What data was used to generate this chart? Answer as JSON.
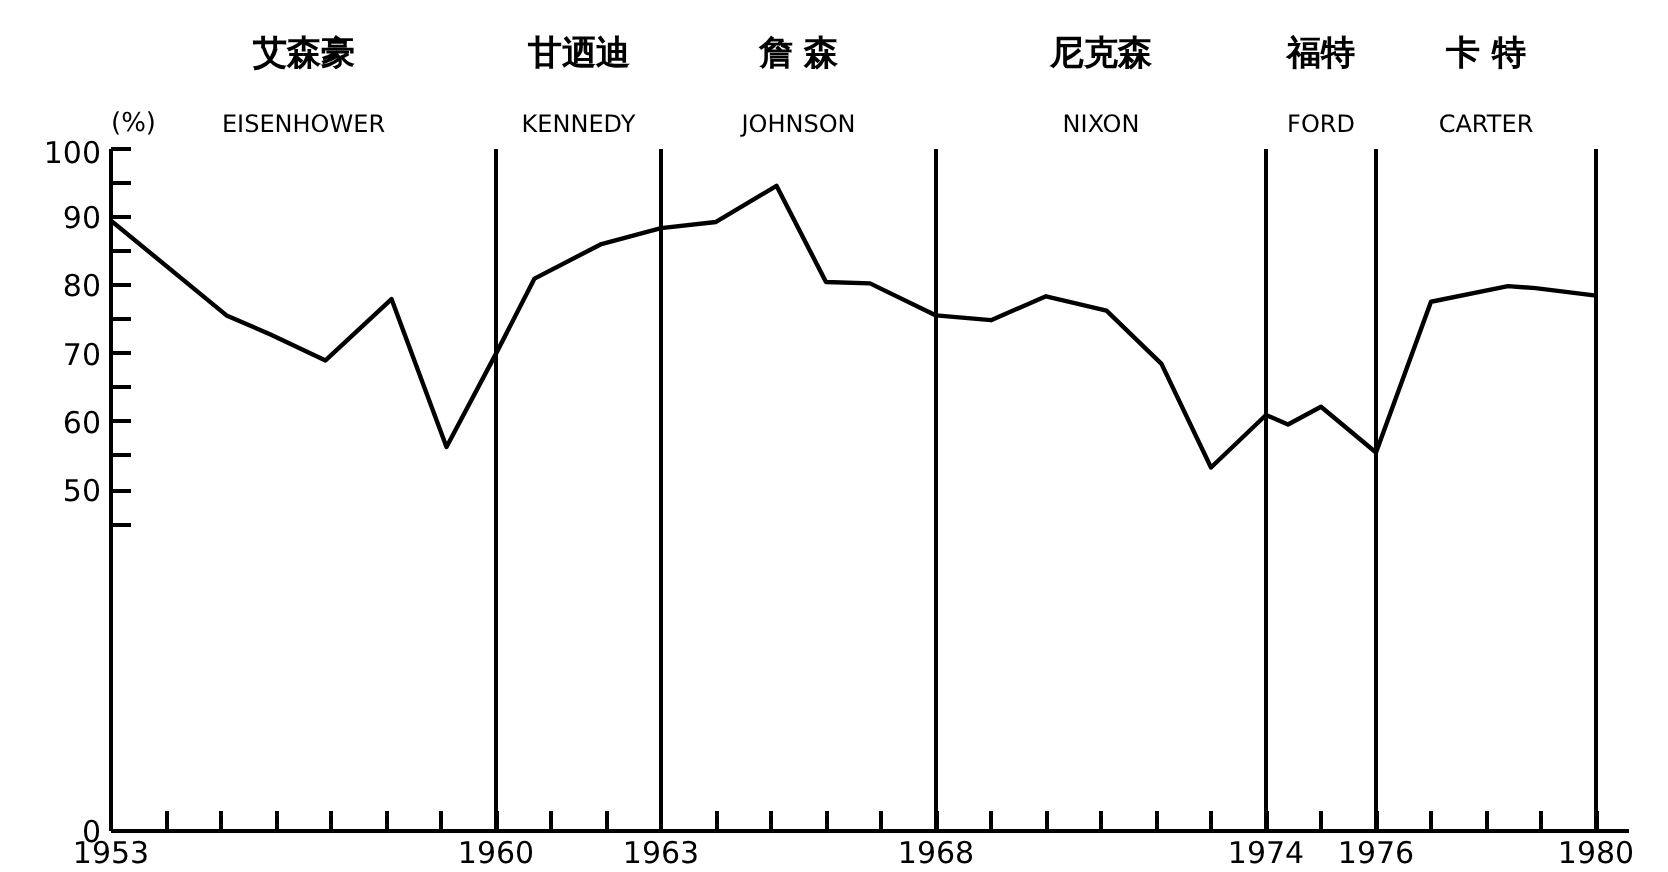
{
  "chart_data": {
    "type": "line",
    "ylabel": "(%)",
    "x": [
      1953.0,
      1955.1,
      1955.9,
      1956.9,
      1958.1,
      1959.1,
      1960.0,
      1960.7,
      1961.9,
      1963.0,
      1964.0,
      1965.1,
      1966.0,
      1966.8,
      1968.0,
      1969.0,
      1970.0,
      1971.1,
      1972.1,
      1973.0,
      1974.0,
      1974.4,
      1975.0,
      1976.0,
      1977.0,
      1978.4,
      1978.9,
      1980.0
    ],
    "series": [
      {
        "color": "#000000",
        "values": [
          89.5,
          75.6,
          72.8,
          69,
          78,
          56.3,
          70,
          81,
          86,
          88.4,
          89.3,
          94.6,
          80.5,
          80.3,
          75.6,
          74.9,
          78.4,
          76.3,
          68.5,
          53.3,
          61,
          59.6,
          62.2,
          55.5,
          77.6,
          79.9,
          79.6,
          78.5
        ]
      }
    ],
    "xlim": [
      1953,
      1980.6
    ],
    "ylim": [
      0,
      100
    ],
    "xticks": [
      1953,
      {
        "value": 1954,
        "label": null
      },
      {
        "value": 1955,
        "label": null
      },
      {
        "value": 1956,
        "label": null
      },
      {
        "value": 1957,
        "label": null
      },
      {
        "value": 1958,
        "label": null
      },
      {
        "value": 1959,
        "label": null
      },
      1960,
      {
        "value": 1961,
        "label": null
      },
      {
        "value": 1962,
        "label": null
      },
      1963,
      {
        "value": 1964,
        "label": null
      },
      {
        "value": 1965,
        "label": null
      },
      {
        "value": 1966,
        "label": null
      },
      {
        "value": 1967,
        "label": null
      },
      1968,
      {
        "value": 1969,
        "label": null
      },
      {
        "value": 1970,
        "label": null
      },
      {
        "value": 1971,
        "label": null
      },
      {
        "value": 1972,
        "label": null
      },
      {
        "value": 1973,
        "label": null
      },
      1974,
      {
        "value": 1975,
        "label": null
      },
      1976,
      {
        "value": 1977,
        "label": null
      },
      {
        "value": 1978,
        "label": null
      },
      {
        "value": 1979,
        "label": null
      },
      1980
    ],
    "yticks": [
      0,
      {
        "value": 45,
        "label": null
      },
      50,
      {
        "value": 55,
        "label": null
      },
      60,
      {
        "value": 65,
        "label": null
      },
      70,
      {
        "value": 75,
        "label": null
      },
      80,
      {
        "value": 85,
        "label": null
      },
      90,
      {
        "value": 95,
        "label": null
      },
      100
    ],
    "ref_lines": [
      {
        "axis": "x",
        "value": 1960
      },
      {
        "axis": "x",
        "value": 1963
      },
      {
        "axis": "x",
        "value": 1968
      },
      {
        "axis": "x",
        "value": 1974
      },
      {
        "axis": "x",
        "value": 1976
      },
      {
        "axis": "x",
        "value": 1980
      }
    ],
    "annotations": [
      "艾森豪\nEISENHOWER",
      "甘迺迪\nKENNEDY",
      "詹 森\nJOHNSON",
      "尼克森\nNIXON",
      "福特\nFORD",
      "卡 特\nCARTER"
    ],
    "grid": false,
    "marker": "none",
    "line_style": "solid"
  }
}
